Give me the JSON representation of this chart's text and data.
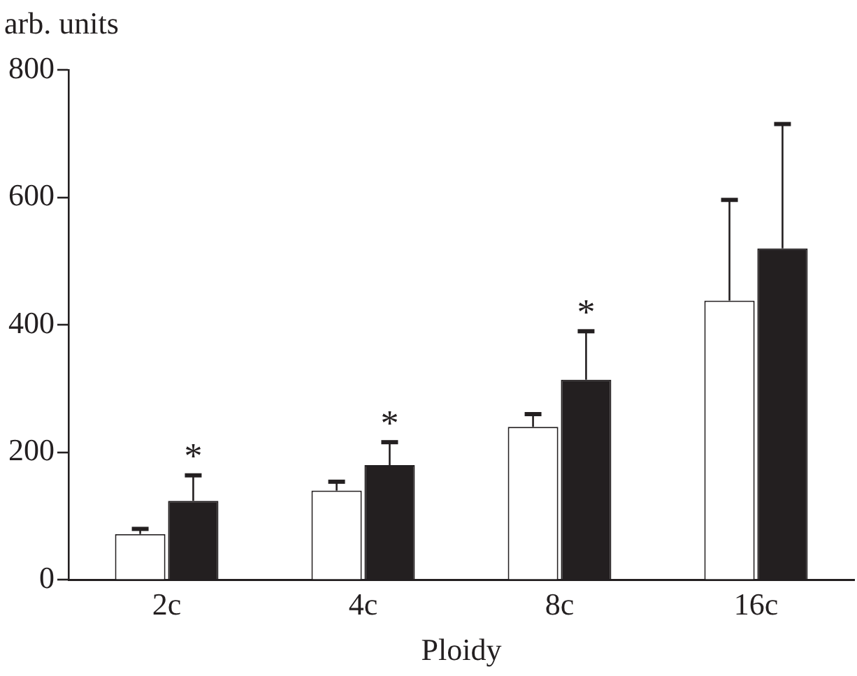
{
  "chart_data": {
    "type": "bar",
    "xlabel": "Ploidy",
    "ylabel": "arb. units",
    "categories": [
      "2c",
      "4c",
      "8c",
      "16c"
    ],
    "series": [
      {
        "color": "#ffffff",
        "values": [
          72,
          140,
          240,
          438
        ],
        "errors": [
          [
            72,
            80
          ],
          [
            140,
            154
          ],
          [
            240,
            260
          ],
          [
            438,
            596
          ]
        ]
      },
      {
        "color": "#231f20",
        "values": [
          124,
          180,
          314,
          520
        ],
        "errors": [
          [
            124,
            164
          ],
          [
            180,
            216
          ],
          [
            314,
            390
          ],
          [
            520,
            715
          ]
        ]
      }
    ],
    "ylim": [
      0,
      800
    ],
    "yticks": [
      0,
      200,
      400,
      600,
      800
    ],
    "grid": false,
    "legend": false,
    "annotations": [
      "*",
      "*",
      "*"
    ]
  }
}
